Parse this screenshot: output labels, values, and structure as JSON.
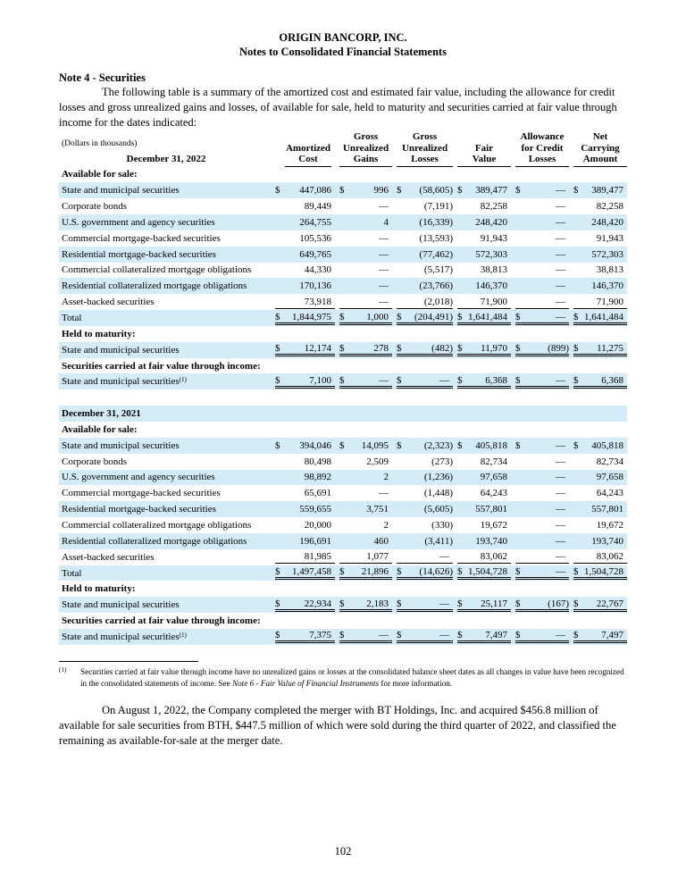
{
  "header": {
    "company": "ORIGIN BANCORP, INC.",
    "subtitle": "Notes to Consolidated Financial Statements"
  },
  "note_title": "Note 4 - Securities",
  "intro": "The following table is a summary of the amortized cost and estimated fair value, including the allowance for credit losses and gross unrealized gains and losses, of available for sale, held to maturity and securities carried at fair value through income for the dates indicated:",
  "table": {
    "units": "(Dollars in thousands)",
    "first_period": "December 31, 2022",
    "columns": [
      "Amortized Cost",
      "Gross Unrealized Gains",
      "Gross Unrealized Losses",
      "Fair Value",
      "Allowance for Credit Losses",
      "Net Carrying Amount"
    ],
    "rows": [
      {
        "type": "sec",
        "label": "Available for sale:"
      },
      {
        "type": "data",
        "label": "State and municipal securities",
        "dollar": true,
        "values": [
          "447,086",
          "996",
          "(58,605)",
          "389,477",
          "—",
          "389,477"
        ]
      },
      {
        "type": "data",
        "label": "Corporate bonds",
        "values": [
          "89,449",
          "—",
          "(7,191)",
          "82,258",
          "—",
          "82,258"
        ]
      },
      {
        "type": "data",
        "label": "U.S. government and agency securities",
        "values": [
          "264,755",
          "4",
          "(16,339)",
          "248,420",
          "—",
          "248,420"
        ]
      },
      {
        "type": "data",
        "label": "Commercial mortgage-backed securities",
        "values": [
          "105,536",
          "—",
          "(13,593)",
          "91,943",
          "—",
          "91,943"
        ]
      },
      {
        "type": "data",
        "label": "Residential mortgage-backed securities",
        "values": [
          "649,765",
          "—",
          "(77,462)",
          "572,303",
          "—",
          "572,303"
        ]
      },
      {
        "type": "data",
        "label": "Commercial collateralized mortgage obligations",
        "values": [
          "44,330",
          "—",
          "(5,517)",
          "38,813",
          "—",
          "38,813"
        ]
      },
      {
        "type": "data",
        "label": "Residential collateralized mortgage obligations",
        "values": [
          "170,136",
          "—",
          "(23,766)",
          "146,370",
          "—",
          "146,370"
        ]
      },
      {
        "type": "data",
        "label": "Asset-backed securities",
        "ul": "1",
        "values": [
          "73,918",
          "—",
          "(2,018)",
          "71,900",
          "—",
          "71,900"
        ]
      },
      {
        "type": "data",
        "label": "Total",
        "indent": true,
        "dollar": true,
        "ul": "2",
        "values": [
          "1,844,975",
          "1,000",
          "(204,491)",
          "1,641,484",
          "—",
          "1,641,484"
        ]
      },
      {
        "type": "sec",
        "label": "Held to maturity:"
      },
      {
        "type": "data",
        "label": "State and municipal securities",
        "dollar": true,
        "ul": "2",
        "values": [
          "12,174",
          "278",
          "(482)",
          "11,970",
          "(899)",
          "11,275"
        ]
      },
      {
        "type": "sec",
        "label": "Securities carried at fair value through income:"
      },
      {
        "type": "data",
        "label": "State and municipal securities",
        "sup": "(1)",
        "dollar": true,
        "ul": "2",
        "values": [
          "7,100",
          "—",
          "—",
          "6,368",
          "—",
          "6,368"
        ]
      },
      {
        "type": "blank"
      },
      {
        "type": "period",
        "label": "December 31, 2021"
      },
      {
        "type": "sec",
        "label": "Available for sale:"
      },
      {
        "type": "data",
        "label": "State and municipal securities",
        "dollar": true,
        "values": [
          "394,046",
          "14,095",
          "(2,323)",
          "405,818",
          "—",
          "405,818"
        ]
      },
      {
        "type": "data",
        "label": "Corporate bonds",
        "values": [
          "80,498",
          "2,509",
          "(273)",
          "82,734",
          "—",
          "82,734"
        ]
      },
      {
        "type": "data",
        "label": "U.S. government and agency securities",
        "values": [
          "98,892",
          "2",
          "(1,236)",
          "97,658",
          "—",
          "97,658"
        ]
      },
      {
        "type": "data",
        "label": "Commercial mortgage-backed securities",
        "values": [
          "65,691",
          "—",
          "(1,448)",
          "64,243",
          "—",
          "64,243"
        ]
      },
      {
        "type": "data",
        "label": "Residential mortgage-backed securities",
        "values": [
          "559,655",
          "3,751",
          "(5,605)",
          "557,801",
          "—",
          "557,801"
        ]
      },
      {
        "type": "data",
        "label": "Commercial collateralized mortgage obligations",
        "values": [
          "20,000",
          "2",
          "(330)",
          "19,672",
          "—",
          "19,672"
        ]
      },
      {
        "type": "data",
        "label": "Residential collateralized mortgage obligations",
        "values": [
          "196,691",
          "460",
          "(3,411)",
          "193,740",
          "—",
          "193,740"
        ]
      },
      {
        "type": "data",
        "label": "Asset-backed securities",
        "ul": "1",
        "values": [
          "81,985",
          "1,077",
          "—",
          "83,062",
          "—",
          "83,062"
        ]
      },
      {
        "type": "data",
        "label": "Total",
        "indent": true,
        "dollar": true,
        "ul": "2",
        "values": [
          "1,497,458",
          "21,896",
          "(14,626)",
          "1,504,728",
          "—",
          "1,504,728"
        ]
      },
      {
        "type": "sec",
        "label": "Held to maturity:"
      },
      {
        "type": "data",
        "label": "State and municipal securities",
        "dollar": true,
        "ul": "2",
        "values": [
          "22,934",
          "2,183",
          "—",
          "25,117",
          "(167)",
          "22,767"
        ]
      },
      {
        "type": "sec",
        "label": "Securities carried at fair value through income:"
      },
      {
        "type": "data",
        "label": "State and municipal securities",
        "sup": "(1)",
        "dollar": true,
        "ul": "2",
        "values": [
          "7,375",
          "—",
          "—",
          "7,497",
          "—",
          "7,497"
        ]
      }
    ],
    "currency_symbol": "$"
  },
  "footnote": {
    "marker": "(1)",
    "text_before": "Securities carried at fair value through income have no unrealized gains or losses at the consolidated balance sheet dates as all changes in value have been recognized in the consolidated statements of income. See ",
    "text_italic": "Note 6 - Fair Value of Financial Instruments",
    "text_after": " for more information."
  },
  "closing": "On August 1, 2022, the Company completed the merger with BT Holdings, Inc. and acquired $456.8 million of available for sale securities from BTH, $447.5 million of which were sold during the third quarter of 2022, and classified the remaining as available-for-sale at the merger date.",
  "page_number": "102",
  "colors": {
    "row_shade": "#d4ebf8"
  }
}
